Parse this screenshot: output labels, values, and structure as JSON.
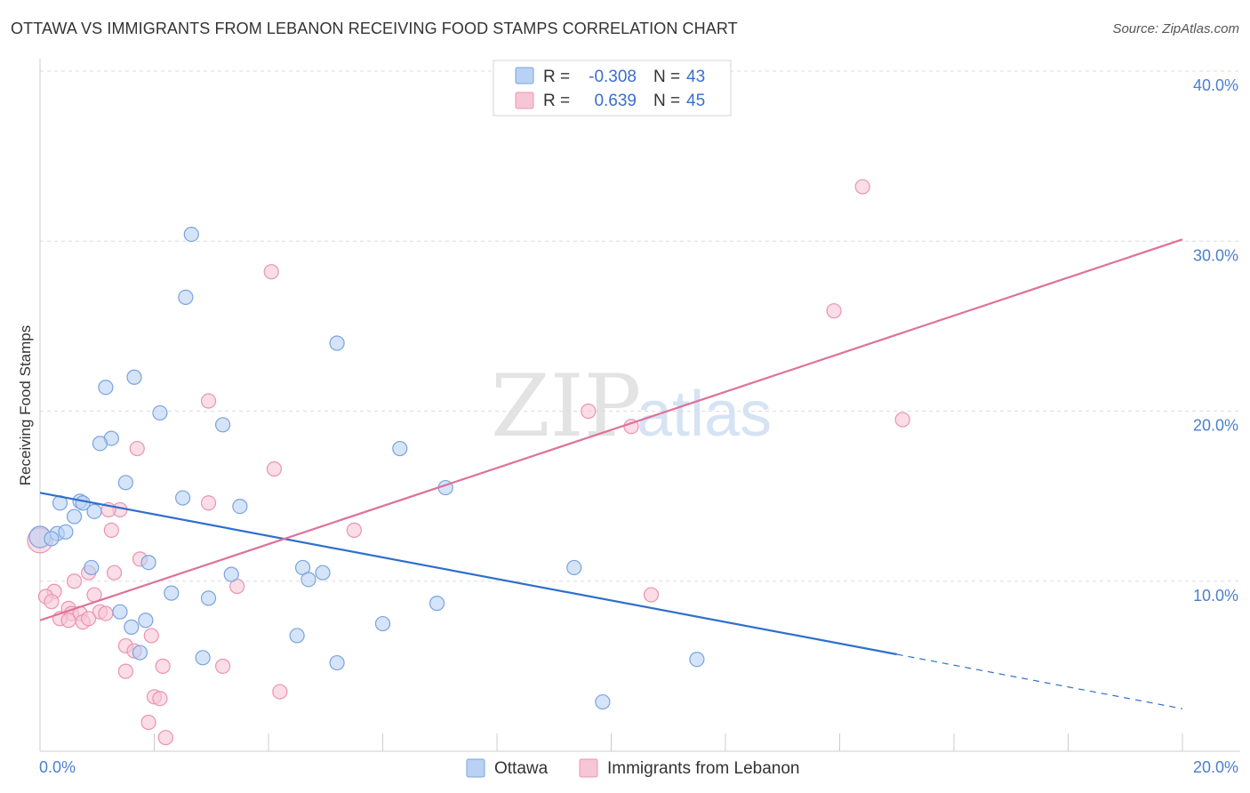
{
  "header": {
    "title": "OTTAWA VS IMMIGRANTS FROM LEBANON RECEIVING FOOD STAMPS CORRELATION CHART",
    "source": "Source: ZipAtlas.com"
  },
  "watermark": {
    "zip": "ZIP",
    "atlas": "atlas"
  },
  "colors": {
    "ottawa_fill": "#b9d2f3",
    "ottawa_stroke": "#7aa3de",
    "ottawa_line": "#2f6fcc",
    "lebanon_fill": "#f7c6d6",
    "lebanon_stroke": "#eb93b1",
    "lebanon_line": "#e07098",
    "grid": "#dcdcdc",
    "tick_text": "#4a7fcf"
  },
  "legend": {
    "r_label": "R =",
    "n_label": "N =",
    "ottawa_r": "-0.308",
    "ottawa_n": "43",
    "lebanon_r": "0.639",
    "lebanon_n": "45"
  },
  "chart_data": {
    "type": "scatter",
    "title": "OTTAWA VS IMMIGRANTS FROM LEBANON RECEIVING FOOD STAMPS CORRELATION CHART",
    "xlabel": "",
    "ylabel": "Receiving Food Stamps",
    "xlim": [
      0,
      20
    ],
    "ylim": [
      0,
      40
    ],
    "x_tick_labels": [
      "0.0%",
      "20.0%"
    ],
    "y_ticks": [
      10,
      20,
      30,
      40
    ],
    "y_tick_labels": [
      "10.0%",
      "20.0%",
      "30.0%",
      "40.0%"
    ],
    "grid": true,
    "legend_position": "top-center",
    "series": [
      {
        "name": "Ottawa",
        "r": -0.308,
        "n": 43,
        "trend": {
          "x0": 0,
          "y0": 15.2,
          "x1": 15,
          "y1": 5.7,
          "dash_x1": 20,
          "dash_y1": 2.5
        },
        "points": [
          [
            2.65,
            30.4
          ],
          [
            2.55,
            26.7
          ],
          [
            5.2,
            24.0
          ],
          [
            1.65,
            22.0
          ],
          [
            1.15,
            21.4
          ],
          [
            2.1,
            19.9
          ],
          [
            3.2,
            19.2
          ],
          [
            1.25,
            18.4
          ],
          [
            1.05,
            18.1
          ],
          [
            6.3,
            17.8
          ],
          [
            1.5,
            15.8
          ],
          [
            7.1,
            15.5
          ],
          [
            2.5,
            14.9
          ],
          [
            0.35,
            14.6
          ],
          [
            0.7,
            14.7
          ],
          [
            0.75,
            14.6
          ],
          [
            3.5,
            14.4
          ],
          [
            0.95,
            14.1
          ],
          [
            0.6,
            13.8
          ],
          [
            0.0,
            12.6
          ],
          [
            0.3,
            12.8
          ],
          [
            0.45,
            12.9
          ],
          [
            0.2,
            12.5
          ],
          [
            1.9,
            11.1
          ],
          [
            0.9,
            10.8
          ],
          [
            4.6,
            10.8
          ],
          [
            9.35,
            10.8
          ],
          [
            4.95,
            10.5
          ],
          [
            3.35,
            10.4
          ],
          [
            4.7,
            10.1
          ],
          [
            2.3,
            9.3
          ],
          [
            2.95,
            9.0
          ],
          [
            6.95,
            8.7
          ],
          [
            1.4,
            8.2
          ],
          [
            1.85,
            7.7
          ],
          [
            1.6,
            7.3
          ],
          [
            6.0,
            7.5
          ],
          [
            4.5,
            6.8
          ],
          [
            1.75,
            5.8
          ],
          [
            2.85,
            5.5
          ],
          [
            5.2,
            5.2
          ],
          [
            11.5,
            5.4
          ],
          [
            9.85,
            2.9
          ]
        ]
      },
      {
        "name": "Immigrants from Lebanon",
        "r": 0.639,
        "n": 45,
        "trend": {
          "x0": 0,
          "y0": 7.7,
          "x1": 20,
          "y1": 30.1
        },
        "points": [
          [
            14.4,
            33.2
          ],
          [
            4.05,
            28.2
          ],
          [
            13.9,
            25.9
          ],
          [
            2.95,
            20.6
          ],
          [
            9.6,
            20.0
          ],
          [
            10.35,
            19.1
          ],
          [
            15.1,
            19.5
          ],
          [
            1.7,
            17.8
          ],
          [
            4.1,
            16.6
          ],
          [
            2.95,
            14.6
          ],
          [
            1.4,
            14.2
          ],
          [
            1.2,
            14.2
          ],
          [
            5.5,
            13.0
          ],
          [
            1.25,
            13.0
          ],
          [
            0.0,
            12.4
          ],
          [
            1.75,
            11.3
          ],
          [
            1.3,
            10.5
          ],
          [
            0.85,
            10.5
          ],
          [
            0.6,
            10.0
          ],
          [
            3.45,
            9.7
          ],
          [
            0.25,
            9.4
          ],
          [
            0.1,
            9.1
          ],
          [
            0.95,
            9.2
          ],
          [
            10.7,
            9.2
          ],
          [
            0.2,
            8.8
          ],
          [
            0.5,
            8.4
          ],
          [
            0.55,
            8.1
          ],
          [
            0.7,
            8.1
          ],
          [
            1.05,
            8.2
          ],
          [
            1.15,
            8.1
          ],
          [
            0.35,
            7.8
          ],
          [
            0.5,
            7.7
          ],
          [
            0.75,
            7.6
          ],
          [
            0.85,
            7.8
          ],
          [
            1.95,
            6.8
          ],
          [
            1.5,
            6.2
          ],
          [
            1.65,
            5.9
          ],
          [
            2.15,
            5.0
          ],
          [
            3.2,
            5.0
          ],
          [
            1.5,
            4.7
          ],
          [
            4.2,
            3.5
          ],
          [
            2.0,
            3.2
          ],
          [
            2.1,
            3.1
          ],
          [
            1.9,
            1.7
          ],
          [
            2.2,
            0.8
          ]
        ]
      }
    ]
  },
  "bottom_legend": {
    "ottawa": "Ottawa",
    "lebanon": "Immigrants from Lebanon"
  }
}
